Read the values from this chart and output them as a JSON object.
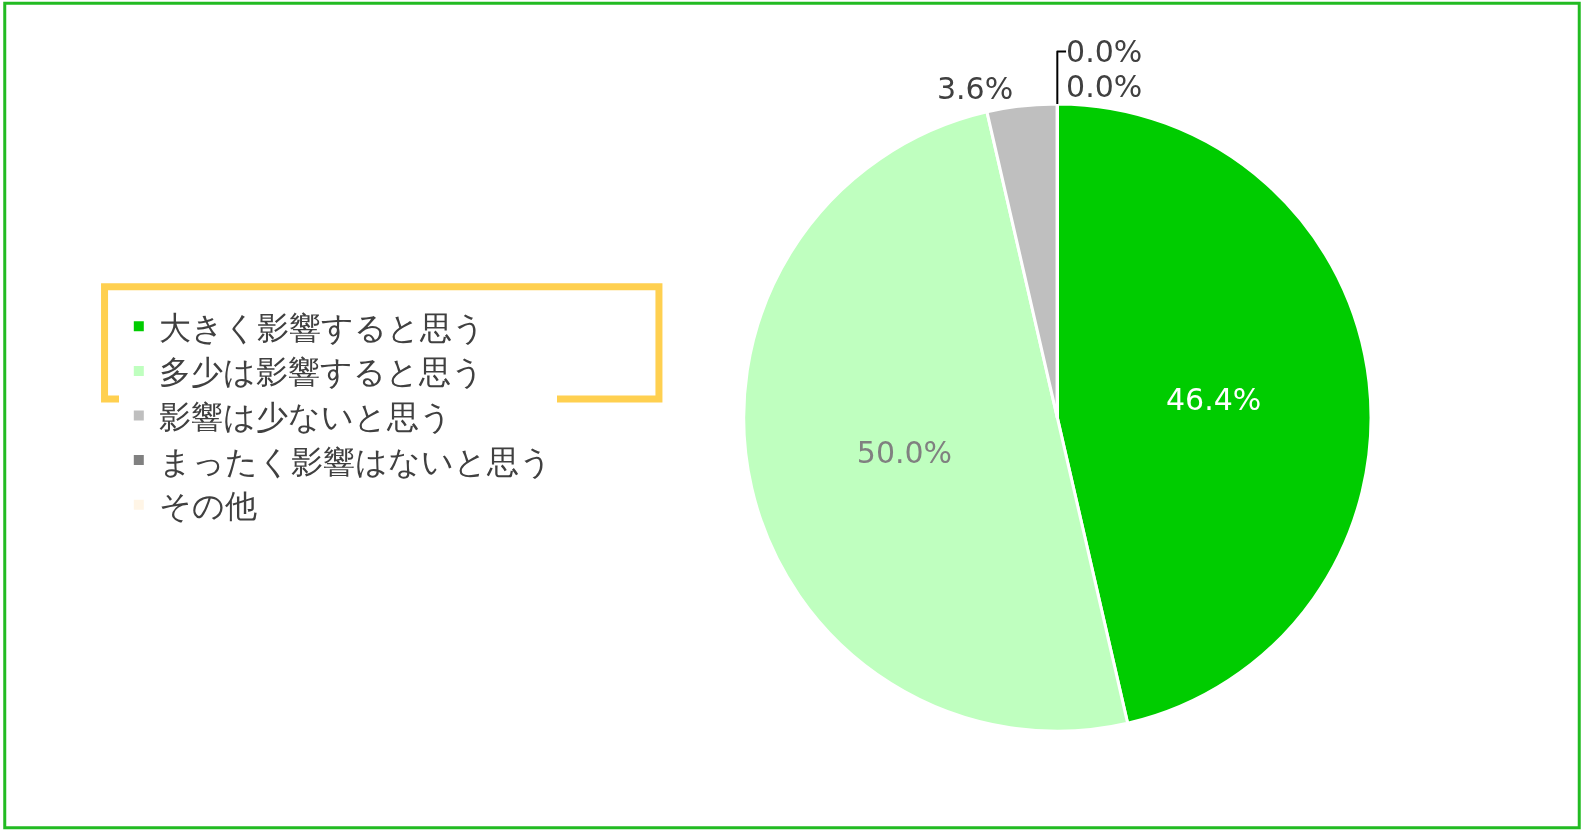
{
  "chart_data": {
    "type": "pie",
    "categories": [
      "大きく影響すると思う",
      "多少は影響すると思う",
      "影響は少ないと思う",
      "まったく影響はないと思う",
      "その他"
    ],
    "values": [
      46.4,
      50.0,
      3.6,
      0.0,
      0.0
    ],
    "colors": [
      "#00cc00",
      "#bfffbf",
      "#bfbfbf",
      "#808080",
      "#fff5e6"
    ],
    "value_labels": [
      "46.4%",
      "50.0%",
      "3.6%",
      "0.0%",
      "0.0%"
    ],
    "legend": "left"
  }
}
